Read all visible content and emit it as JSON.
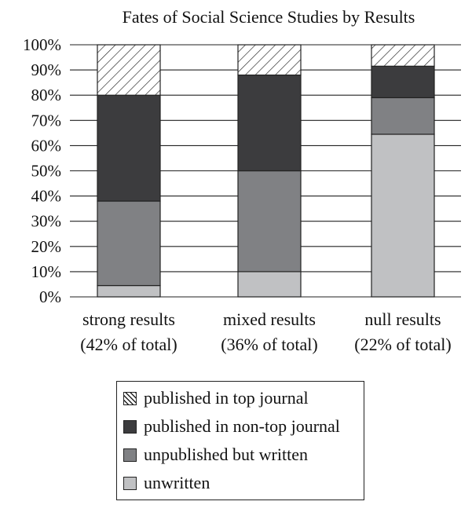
{
  "chart_data": {
    "type": "bar",
    "stacked": true,
    "title": "Fates of Social Science Studies by Results",
    "xlabel": "",
    "ylabel": "",
    "ylim": [
      0,
      100
    ],
    "yticks": [
      "0%",
      "10%",
      "20%",
      "30%",
      "40%",
      "50%",
      "60%",
      "70%",
      "80%",
      "90%",
      "100%"
    ],
    "categories": [
      {
        "line1": "strong results",
        "line2": "(42% of total)"
      },
      {
        "line1": "mixed results",
        "line2": "(36% of total)"
      },
      {
        "line1": "null results",
        "line2": "(22% of total)"
      }
    ],
    "series": [
      {
        "name": "unwritten",
        "color": "#c0c1c3",
        "pattern": "solid",
        "values": [
          4.5,
          10,
          64.5
        ]
      },
      {
        "name": "unpublished but written",
        "color": "#808184",
        "pattern": "solid",
        "values": [
          33.5,
          40,
          14.5
        ]
      },
      {
        "name": "published in non-top journal",
        "color": "#3c3c3e",
        "pattern": "solid",
        "values": [
          42,
          38,
          12.5
        ]
      },
      {
        "name": "published in top journal",
        "color": "#ffffff",
        "pattern": "hatch",
        "values": [
          20,
          12,
          8.5
        ]
      }
    ],
    "legend": {
      "placement": "bottom",
      "order": [
        "published in top journal",
        "published in non-top journal",
        "unpublished but written",
        "unwritten"
      ]
    },
    "grid": true
  }
}
